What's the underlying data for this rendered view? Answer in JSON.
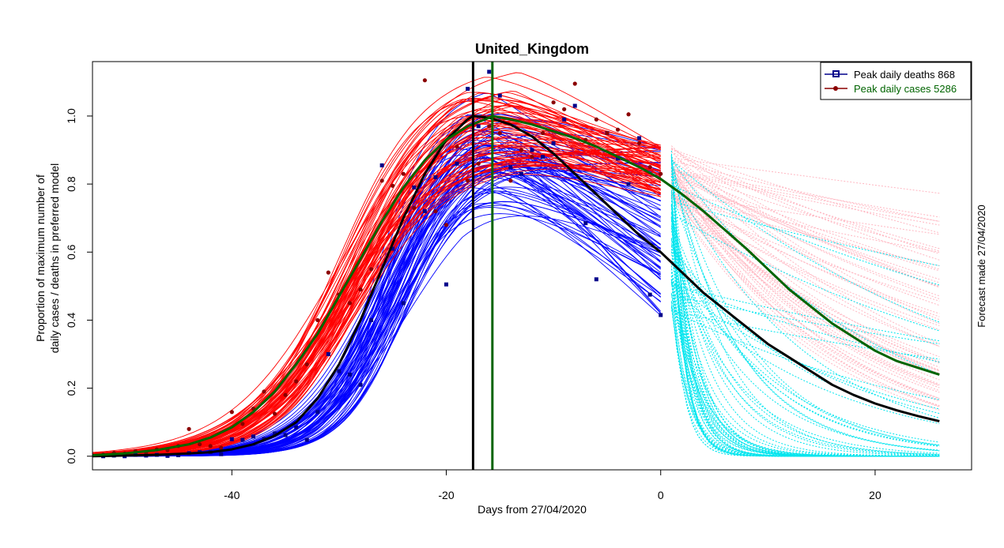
{
  "chart_data": {
    "type": "line",
    "title": "United_Kingdom",
    "xlabel": "Days from 27/04/2020",
    "ylabel_line1": "Proportion of maximum number of",
    "ylabel_line2": "daily cases / deaths in preferred model",
    "side_note": "Forecast made 27/04/2020",
    "xlim": [
      -53,
      29
    ],
    "ylim": [
      -0.04,
      1.16
    ],
    "x_ticks": [
      -40,
      -20,
      0,
      20
    ],
    "y_ticks": [
      0.0,
      0.2,
      0.4,
      0.6,
      0.8,
      1.0
    ],
    "x_tick_labels": [
      "-40",
      "-20",
      "0",
      "20"
    ],
    "y_tick_labels": [
      "0.0",
      "0.2",
      "0.4",
      "0.6",
      "0.8",
      "1.0"
    ],
    "legend": {
      "position": "top-right",
      "entries": [
        {
          "label": "Peak daily deaths 868",
          "color": "#00008b",
          "marker": "square"
        },
        {
          "label": "Peak daily cases 5286",
          "color": "#006400",
          "marker": "circle"
        }
      ]
    },
    "colors": {
      "deaths_fit": "#0000ff",
      "cases_fit": "#ff0000",
      "deaths_forecast": "#00e5ee",
      "cases_forecast": "#ffb6c1",
      "deaths_points": "#00008b",
      "cases_points": "#8b0000",
      "deaths_best": "#000000",
      "cases_best": "#006400"
    },
    "peak_lines": [
      {
        "name": "deaths peak",
        "x": -17.5,
        "color": "#000000"
      },
      {
        "name": "cases peak",
        "x": -15.7,
        "color": "#006400"
      }
    ],
    "series": [
      {
        "name": "deaths_best_fit",
        "x": [
          -53,
          -50,
          -47,
          -44,
          -42,
          -40,
          -38,
          -36,
          -34,
          -32,
          -30,
          -28,
          -26,
          -24,
          -22,
          -20,
          -18,
          -17.5,
          -16,
          -14,
          -12,
          -10,
          -8,
          -6,
          -4,
          -2,
          0,
          2,
          4,
          6,
          8,
          10,
          12,
          14,
          16,
          18,
          20,
          22,
          24,
          26
        ],
        "y": [
          0.0,
          0.002,
          0.004,
          0.008,
          0.012,
          0.02,
          0.035,
          0.06,
          0.1,
          0.17,
          0.27,
          0.4,
          0.55,
          0.7,
          0.83,
          0.93,
          0.99,
          1.0,
          0.995,
          0.975,
          0.94,
          0.89,
          0.83,
          0.77,
          0.71,
          0.65,
          0.6,
          0.54,
          0.48,
          0.43,
          0.38,
          0.33,
          0.29,
          0.25,
          0.21,
          0.18,
          0.155,
          0.135,
          0.118,
          0.103
        ]
      },
      {
        "name": "cases_best_fit",
        "x": [
          -53,
          -50,
          -47,
          -44,
          -42,
          -40,
          -38,
          -36,
          -34,
          -32,
          -30,
          -28,
          -26,
          -24,
          -22,
          -20,
          -18,
          -16,
          -15.7,
          -14,
          -12,
          -10,
          -8,
          -6,
          -4,
          -2,
          0,
          2,
          4,
          6,
          8,
          10,
          12,
          14,
          16,
          18,
          20,
          22,
          24,
          26
        ],
        "y": [
          0.003,
          0.008,
          0.018,
          0.035,
          0.055,
          0.085,
          0.13,
          0.19,
          0.27,
          0.36,
          0.47,
          0.58,
          0.69,
          0.79,
          0.87,
          0.93,
          0.97,
          0.995,
          1.0,
          0.99,
          0.975,
          0.955,
          0.935,
          0.91,
          0.88,
          0.85,
          0.815,
          0.77,
          0.72,
          0.665,
          0.61,
          0.55,
          0.49,
          0.44,
          0.39,
          0.35,
          0.31,
          0.28,
          0.26,
          0.24
        ]
      },
      {
        "name": "deaths_observed",
        "x": [
          -52,
          -51,
          -50,
          -49,
          -48,
          -47,
          -46,
          -45,
          -44,
          -43,
          -42,
          -41,
          -40,
          -39,
          -38,
          -37,
          -36,
          -35,
          -34,
          -33,
          -32,
          -31,
          -30,
          -29,
          -28,
          -27,
          -26,
          -25,
          -24,
          -23,
          -22,
          -21,
          -20,
          -19,
          -18,
          -17,
          -16,
          -15,
          -14,
          -13,
          -12,
          -11,
          -10,
          -9,
          -8,
          -7,
          -6,
          -5,
          -4,
          -3,
          -2,
          -1,
          0
        ],
        "y": [
          0.0,
          0.002,
          0.0,
          0.004,
          0.002,
          0.004,
          0.001,
          0.003,
          0.009,
          0.012,
          0.012,
          0.006,
          0.05,
          0.048,
          0.058,
          0.051,
          0.067,
          0.062,
          0.085,
          0.048,
          0.13,
          0.3,
          0.25,
          0.24,
          0.21,
          0.4,
          0.855,
          0.61,
          0.45,
          0.79,
          0.72,
          0.82,
          0.505,
          0.86,
          1.08,
          0.97,
          1.13,
          1.06,
          0.85,
          0.83,
          0.9,
          0.88,
          0.92,
          0.99,
          1.03,
          0.685,
          0.52,
          0.95,
          0.875,
          0.8,
          0.935,
          0.475,
          0.415
        ]
      },
      {
        "name": "cases_observed",
        "x": [
          -52,
          -51,
          -50,
          -49,
          -48,
          -47,
          -46,
          -45,
          -44,
          -43,
          -42,
          -41,
          -40,
          -39,
          -38,
          -37,
          -36,
          -35,
          -34,
          -33,
          -32,
          -31,
          -30,
          -29,
          -28,
          -27,
          -26,
          -25,
          -24,
          -23,
          -22,
          -21,
          -20,
          -19,
          -18,
          -17,
          -16,
          -15,
          -14,
          -13,
          -12,
          -11,
          -10,
          -9,
          -8,
          -7,
          -6,
          -5,
          -4,
          -3,
          -2,
          -1,
          0
        ],
        "y": [
          0.005,
          0.01,
          0.008,
          0.015,
          0.012,
          0.02,
          0.018,
          0.03,
          0.08,
          0.035,
          0.03,
          0.025,
          0.13,
          0.095,
          0.14,
          0.19,
          0.125,
          0.18,
          0.22,
          0.27,
          0.4,
          0.54,
          0.475,
          0.45,
          0.49,
          0.55,
          0.81,
          0.795,
          0.83,
          0.73,
          1.105,
          0.72,
          0.68,
          0.91,
          0.81,
          0.86,
          0.97,
          0.95,
          0.81,
          0.9,
          0.88,
          0.95,
          1.04,
          1.02,
          1.095,
          0.93,
          0.99,
          0.95,
          0.96,
          1.005,
          0.92,
          0.85,
          0.83
        ]
      }
    ],
    "ensemble": {
      "deaths_fit_count": 70,
      "cases_fit_count": 70,
      "deaths_forecast_count": 70,
      "cases_forecast_count": 60,
      "forecast_start_day": 1,
      "forecast_end_day": 26
    }
  }
}
